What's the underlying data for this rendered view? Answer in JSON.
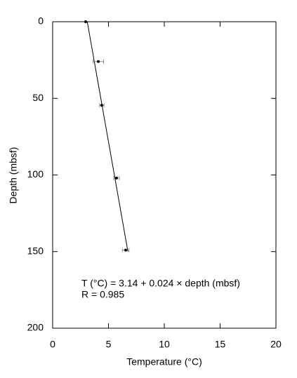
{
  "chart_data": {
    "type": "scatter",
    "x_label": "Temperature (°C)",
    "y_label": "Depth (mbsf)",
    "xlim": [
      0,
      20
    ],
    "xticks": [
      0,
      5,
      10,
      15,
      20
    ],
    "ylim": [
      0,
      200
    ],
    "yticks": [
      0,
      50,
      100,
      150,
      200
    ],
    "y_inverted": true,
    "points": {
      "color": "#000000",
      "x": [
        2.96,
        4.09,
        4.4,
        5.72,
        6.54
      ],
      "y": [
        0,
        26,
        54.5,
        102,
        149
      ],
      "xerr": [
        0,
        0.47,
        0.2,
        0.25,
        0.3
      ]
    },
    "fit_line": {
      "color": "#000000",
      "x": [
        3.1,
        6.74
      ],
      "y": [
        0,
        150
      ]
    },
    "annotations": [
      "T (°C) = 3.14 + 0.024 × depth (mbsf)",
      "R = 0.985"
    ]
  }
}
